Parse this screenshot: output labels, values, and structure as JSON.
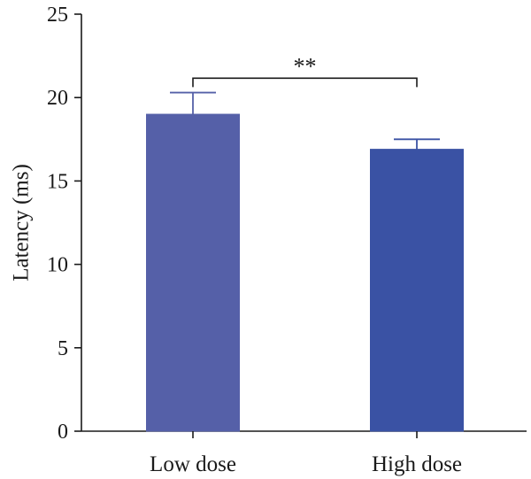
{
  "chart_data": {
    "type": "bar",
    "categories": [
      "Low dose",
      "High dose"
    ],
    "values": [
      19.0,
      16.9
    ],
    "errors": [
      1.3,
      0.6
    ],
    "ylabel": "Latency (ms)",
    "xlabel": "",
    "ylim": [
      0,
      25
    ],
    "yticks": [
      0,
      5,
      10,
      15,
      20,
      25
    ],
    "colors": [
      "#5560a8",
      "#3a52a4"
    ],
    "significance": {
      "label": "**",
      "between": [
        0,
        1
      ],
      "at": 21.0
    },
    "grid": false
  }
}
